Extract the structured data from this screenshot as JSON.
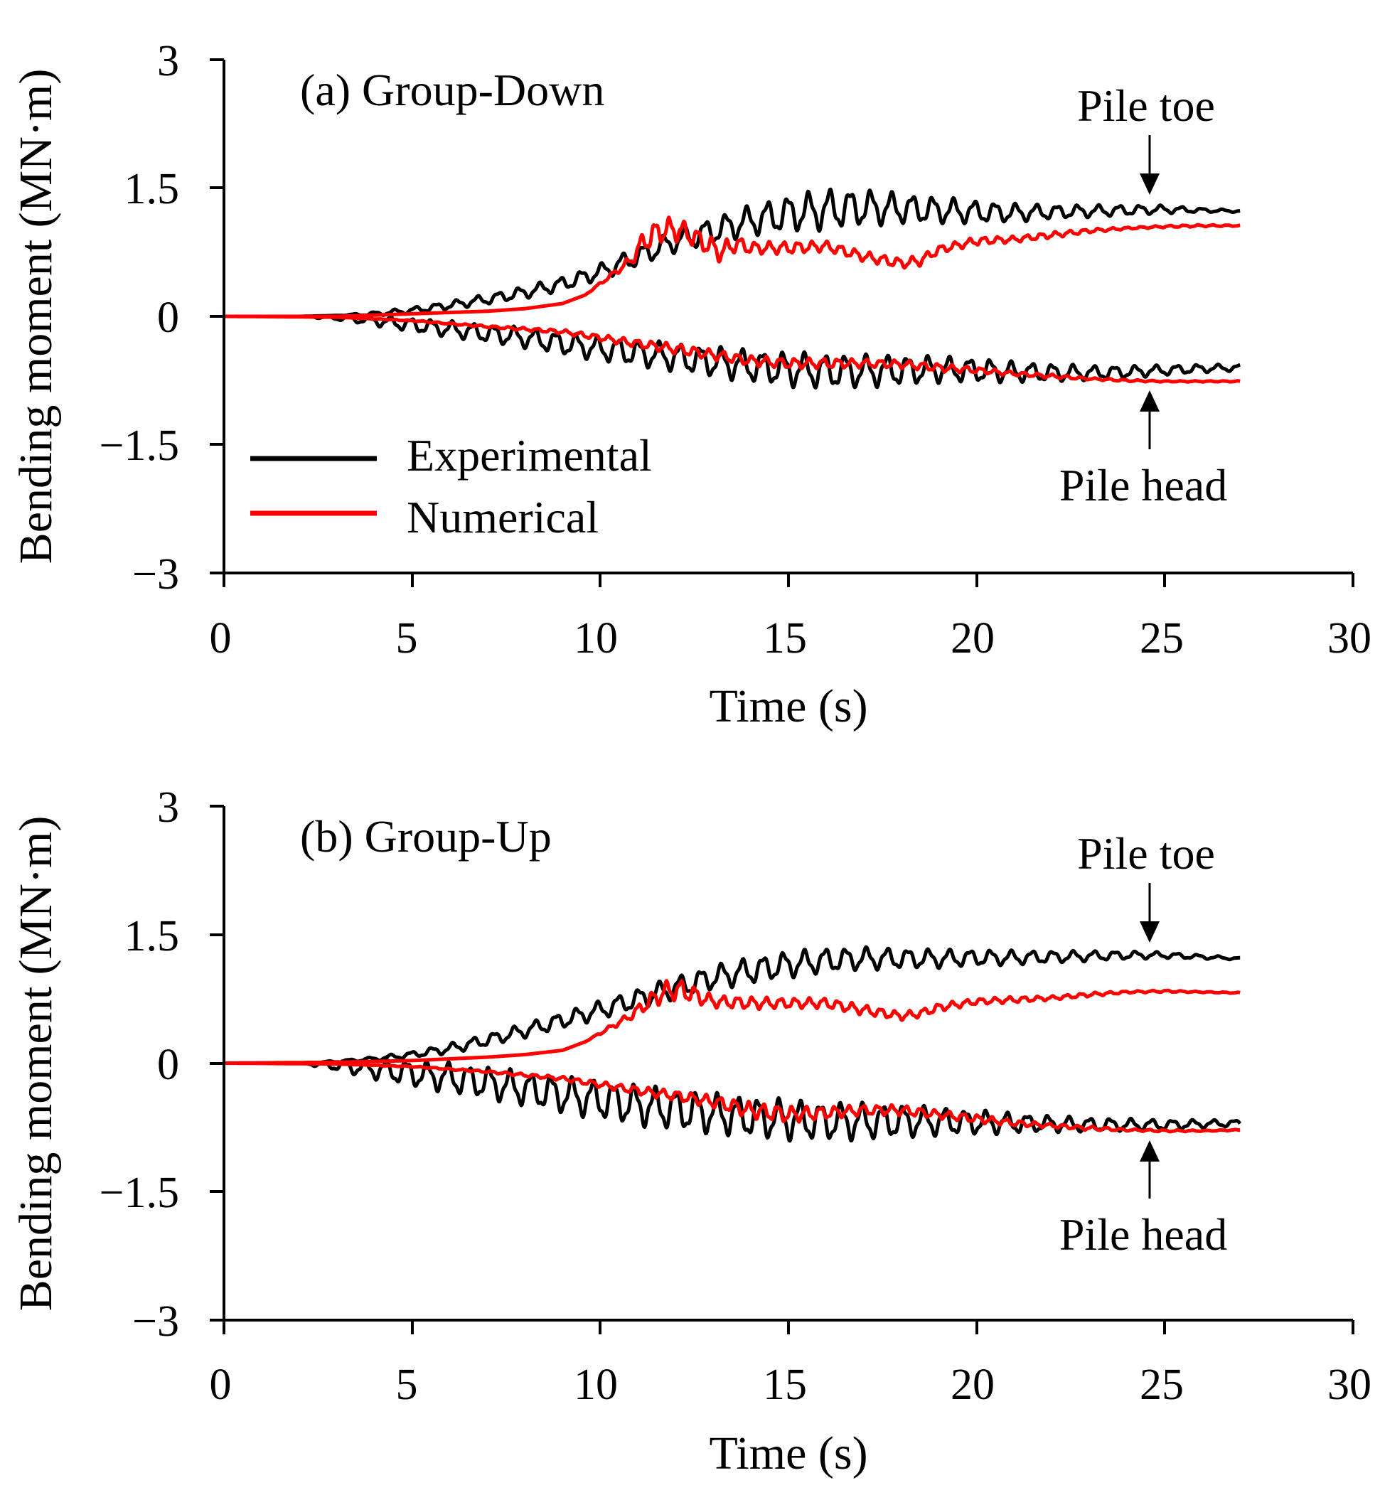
{
  "chart_data": [
    {
      "type": "line",
      "title": "(a) Group-Down",
      "xlabel": "Time (s)",
      "ylabel": "Bending moment (MN·m)",
      "xlim": [
        0,
        30
      ],
      "ylim": [
        -3,
        3
      ],
      "xticks": [
        "0",
        "5",
        "10",
        "15",
        "20",
        "25",
        "30"
      ],
      "yticks": [
        "3",
        "1.5",
        "0",
        "−1.5",
        "−3"
      ],
      "legend": [
        {
          "name": "Experimental",
          "color": "#000000"
        },
        {
          "name": "Numerical",
          "color": "#ff0000"
        }
      ],
      "legend_position": "left",
      "annotations": {
        "top": "Pile toe",
        "bottom": "Pile head"
      },
      "series": [
        {
          "name": "Experimental (Pile toe)",
          "color": "#000000",
          "x": [
            0,
            2,
            3,
            4,
            5,
            6,
            7,
            8,
            9,
            10,
            11,
            12,
            13,
            14,
            15,
            16,
            17,
            18,
            19,
            20,
            21,
            22,
            23,
            24,
            25,
            26,
            27
          ],
          "y": [
            0,
            0,
            0.01,
            0.03,
            0.07,
            0.13,
            0.2,
            0.28,
            0.38,
            0.52,
            0.7,
            0.88,
            1.0,
            1.12,
            1.2,
            1.25,
            1.27,
            1.26,
            1.24,
            1.22,
            1.21,
            1.22,
            1.23,
            1.24,
            1.25,
            1.24,
            1.23
          ],
          "osc_amplitude": [
            0,
            0,
            0,
            0.02,
            0.03,
            0.04,
            0.05,
            0.06,
            0.07,
            0.08,
            0.1,
            0.11,
            0.13,
            0.15,
            0.18,
            0.2,
            0.18,
            0.15,
            0.13,
            0.11,
            0.09,
            0.07,
            0.06,
            0.05,
            0.04,
            0.02,
            0.01
          ]
        },
        {
          "name": "Numerical (Pile toe)",
          "color": "#ff0000",
          "x": [
            0,
            3,
            5,
            7,
            8,
            9,
            9.6,
            10.2,
            10.8,
            11.2,
            11.6,
            12.0,
            12.4,
            12.8,
            13.2,
            13.6,
            14,
            15,
            16,
            17,
            18,
            18.5,
            19,
            20,
            21,
            22,
            23,
            24,
            25,
            26,
            27
          ],
          "y": [
            0,
            0,
            0.03,
            0.06,
            0.09,
            0.15,
            0.25,
            0.45,
            0.65,
            0.9,
            1.0,
            1.02,
            0.95,
            0.85,
            0.75,
            0.85,
            0.8,
            0.8,
            0.82,
            0.7,
            0.62,
            0.65,
            0.78,
            0.88,
            0.9,
            0.95,
            1.0,
            1.03,
            1.05,
            1.06,
            1.06
          ],
          "osc_amplitude": [
            0,
            0,
            0,
            0,
            0,
            0,
            0,
            0.02,
            0.05,
            0.12,
            0.12,
            0.12,
            0.1,
            0.1,
            0.1,
            0.08,
            0.06,
            0.06,
            0.05,
            0.05,
            0.05,
            0.05,
            0.04,
            0.04,
            0.03,
            0.03,
            0.02,
            0.01,
            0.01,
            0.01,
            0.005
          ]
        },
        {
          "name": "Experimental (Pile head)",
          "color": "#000000",
          "x": [
            0,
            2,
            3,
            4,
            5,
            6,
            7,
            8,
            9,
            10,
            11,
            12,
            13,
            14,
            15,
            16,
            17,
            18,
            19,
            20,
            21,
            22,
            23,
            24,
            25,
            26,
            27
          ],
          "y": [
            0,
            0,
            -0.02,
            -0.05,
            -0.1,
            -0.15,
            -0.2,
            -0.25,
            -0.32,
            -0.38,
            -0.43,
            -0.48,
            -0.53,
            -0.58,
            -0.62,
            -0.64,
            -0.64,
            -0.63,
            -0.62,
            -0.63,
            -0.65,
            -0.66,
            -0.66,
            -0.65,
            -0.63,
            -0.61,
            -0.6
          ],
          "osc_amplitude": [
            0,
            0,
            0.02,
            0.05,
            0.07,
            0.08,
            0.09,
            0.1,
            0.11,
            0.12,
            0.13,
            0.14,
            0.15,
            0.16,
            0.17,
            0.17,
            0.16,
            0.15,
            0.13,
            0.12,
            0.1,
            0.09,
            0.07,
            0.06,
            0.05,
            0.04,
            0.03
          ]
        },
        {
          "name": "Numerical (Pile head)",
          "color": "#ff0000",
          "x": [
            0,
            3,
            5,
            7,
            9,
            10,
            11,
            12,
            13,
            14,
            15,
            16,
            17,
            18,
            19,
            20,
            21,
            22,
            23,
            24,
            25,
            26,
            27
          ],
          "y": [
            0,
            -0.01,
            -0.05,
            -0.12,
            -0.18,
            -0.25,
            -0.32,
            -0.38,
            -0.45,
            -0.52,
            -0.55,
            -0.55,
            -0.55,
            -0.56,
            -0.6,
            -0.63,
            -0.67,
            -0.7,
            -0.73,
            -0.75,
            -0.76,
            -0.76,
            -0.76
          ],
          "osc_amplitude": [
            0,
            0,
            0.005,
            0.01,
            0.02,
            0.03,
            0.04,
            0.05,
            0.05,
            0.05,
            0.05,
            0.05,
            0.04,
            0.04,
            0.04,
            0.03,
            0.02,
            0.02,
            0.01,
            0.01,
            0.005,
            0.005,
            0.005
          ]
        }
      ]
    },
    {
      "type": "line",
      "title": "(b) Group-Up",
      "xlabel": "Time (s)",
      "ylabel": "Bending moment (MN·m)",
      "xlim": [
        0,
        30
      ],
      "ylim": [
        -3,
        3
      ],
      "xticks": [
        "0",
        "5",
        "10",
        "15",
        "20",
        "25",
        "30"
      ],
      "yticks": [
        "3",
        "1.5",
        "0",
        "−1.5",
        "−3"
      ],
      "annotations": {
        "top": "Pile toe",
        "bottom": "Pile head"
      },
      "series": [
        {
          "name": "Experimental (Pile toe)",
          "color": "#000000",
          "x": [
            0,
            2,
            3,
            4,
            5,
            6,
            7,
            8,
            9,
            10,
            11,
            12,
            13,
            14,
            15,
            16,
            17,
            18,
            19,
            20,
            21,
            22,
            23,
            24,
            25,
            26,
            27
          ],
          "y": [
            0,
            0,
            0.02,
            0.05,
            0.1,
            0.17,
            0.27,
            0.38,
            0.5,
            0.62,
            0.75,
            0.88,
            1.0,
            1.08,
            1.15,
            1.2,
            1.22,
            1.22,
            1.22,
            1.23,
            1.23,
            1.24,
            1.25,
            1.26,
            1.26,
            1.24,
            1.22
          ],
          "osc_amplitude": [
            0,
            0,
            0.01,
            0.02,
            0.03,
            0.05,
            0.06,
            0.07,
            0.08,
            0.09,
            0.1,
            0.11,
            0.12,
            0.13,
            0.13,
            0.12,
            0.11,
            0.1,
            0.09,
            0.08,
            0.07,
            0.06,
            0.05,
            0.04,
            0.03,
            0.02,
            0.01
          ]
        },
        {
          "name": "Numerical (Pile toe)",
          "color": "#ff0000",
          "x": [
            0,
            3,
            5,
            7,
            8,
            9,
            9.6,
            10.2,
            10.8,
            11.3,
            11.8,
            12.2,
            12.6,
            13,
            14,
            15,
            16,
            17,
            18,
            18.5,
            19,
            20,
            21,
            22,
            23,
            24,
            25,
            26,
            27
          ],
          "y": [
            0,
            0.01,
            0.03,
            0.07,
            0.1,
            0.15,
            0.25,
            0.4,
            0.55,
            0.72,
            0.85,
            0.85,
            0.78,
            0.72,
            0.7,
            0.7,
            0.7,
            0.62,
            0.55,
            0.58,
            0.65,
            0.72,
            0.74,
            0.76,
            0.8,
            0.83,
            0.84,
            0.83,
            0.82
          ],
          "osc_amplitude": [
            0,
            0,
            0,
            0,
            0,
            0,
            0,
            0.02,
            0.04,
            0.08,
            0.1,
            0.1,
            0.08,
            0.06,
            0.06,
            0.05,
            0.05,
            0.05,
            0.04,
            0.04,
            0.04,
            0.03,
            0.03,
            0.02,
            0.02,
            0.01,
            0.01,
            0.005,
            0.005
          ]
        },
        {
          "name": "Experimental (Pile head)",
          "color": "#000000",
          "x": [
            0,
            2,
            3,
            4,
            5,
            6,
            7,
            8,
            9,
            10,
            11,
            12,
            13,
            14,
            15,
            16,
            17,
            18,
            19,
            20,
            21,
            22,
            23,
            24,
            25,
            26,
            27
          ],
          "y": [
            0,
            0,
            -0.03,
            -0.07,
            -0.12,
            -0.17,
            -0.23,
            -0.3,
            -0.37,
            -0.43,
            -0.49,
            -0.54,
            -0.59,
            -0.63,
            -0.66,
            -0.68,
            -0.68,
            -0.68,
            -0.68,
            -0.69,
            -0.7,
            -0.71,
            -0.72,
            -0.72,
            -0.72,
            -0.71,
            -0.7
          ],
          "osc_amplitude": [
            0,
            0,
            0.05,
            0.1,
            0.13,
            0.15,
            0.16,
            0.17,
            0.18,
            0.19,
            0.2,
            0.2,
            0.2,
            0.2,
            0.2,
            0.19,
            0.18,
            0.16,
            0.14,
            0.12,
            0.1,
            0.08,
            0.07,
            0.06,
            0.05,
            0.04,
            0.03
          ]
        },
        {
          "name": "Numerical (Pile head)",
          "color": "#ff0000",
          "x": [
            0,
            3,
            5,
            7,
            9,
            10,
            11,
            12,
            13,
            14,
            15,
            16,
            17,
            18,
            19,
            20,
            21,
            22,
            23,
            24,
            25,
            26,
            27
          ],
          "y": [
            0,
            -0.01,
            -0.04,
            -0.1,
            -0.18,
            -0.25,
            -0.32,
            -0.38,
            -0.45,
            -0.55,
            -0.6,
            -0.58,
            -0.55,
            -0.55,
            -0.6,
            -0.65,
            -0.7,
            -0.73,
            -0.76,
            -0.78,
            -0.79,
            -0.79,
            -0.78
          ],
          "osc_amplitude": [
            0,
            0,
            0.005,
            0.01,
            0.02,
            0.03,
            0.04,
            0.05,
            0.06,
            0.08,
            0.08,
            0.06,
            0.05,
            0.05,
            0.04,
            0.04,
            0.03,
            0.02,
            0.02,
            0.01,
            0.01,
            0.005,
            0.005
          ]
        }
      ]
    }
  ]
}
